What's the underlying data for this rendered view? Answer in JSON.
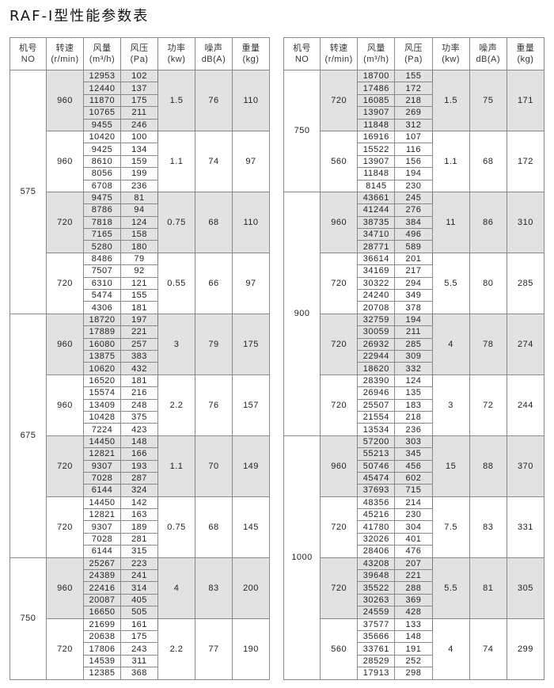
{
  "title": "RAF-Ⅰ型性能参数表",
  "headers": [
    {
      "line1": "机号",
      "line2": "NO"
    },
    {
      "line1": "转速",
      "line2": "(r/min)"
    },
    {
      "line1": "风量",
      "line2": "(m³/h)"
    },
    {
      "line1": "风压",
      "line2": "(Pa)"
    },
    {
      "line1": "功率",
      "line2": "(kw)"
    },
    {
      "line1": "噪声",
      "line2": "dB(A)"
    },
    {
      "line1": "重量",
      "line2": "(kg)"
    }
  ],
  "tables": [
    {
      "models": [
        {
          "no": "575",
          "groups": [
            {
              "speed": "960",
              "flow": [
                "12953",
                "12440",
                "11870",
                "10765",
                "9455"
              ],
              "pressure": [
                "102",
                "137",
                "175",
                "211",
                "246"
              ],
              "power": "1.5",
              "noise": "76",
              "weight": "110"
            },
            {
              "speed": "960",
              "flow": [
                "10420",
                "9425",
                "8610",
                "8056",
                "6708"
              ],
              "pressure": [
                "100",
                "134",
                "159",
                "199",
                "236"
              ],
              "power": "1.1",
              "noise": "74",
              "weight": "97"
            },
            {
              "speed": "720",
              "flow": [
                "9475",
                "8786",
                "7818",
                "7165",
                "5280"
              ],
              "pressure": [
                "81",
                "94",
                "124",
                "158",
                "180"
              ],
              "power": "0.75",
              "noise": "68",
              "weight": "110"
            },
            {
              "speed": "720",
              "flow": [
                "8486",
                "7507",
                "6310",
                "5474",
                "4306"
              ],
              "pressure": [
                "79",
                "92",
                "121",
                "155",
                "181"
              ],
              "power": "0.55",
              "noise": "66",
              "weight": "97"
            }
          ]
        },
        {
          "no": "675",
          "groups": [
            {
              "speed": "960",
              "flow": [
                "18720",
                "17889",
                "16080",
                "13875",
                "10620"
              ],
              "pressure": [
                "197",
                "221",
                "257",
                "383",
                "432"
              ],
              "power": "3",
              "noise": "79",
              "weight": "175"
            },
            {
              "speed": "960",
              "flow": [
                "16520",
                "15574",
                "13409",
                "10428",
                "7224"
              ],
              "pressure": [
                "181",
                "216",
                "248",
                "375",
                "423"
              ],
              "power": "2.2",
              "noise": "76",
              "weight": "157"
            },
            {
              "speed": "720",
              "flow": [
                "14450",
                "12821",
                "9307",
                "7028",
                "6144"
              ],
              "pressure": [
                "148",
                "166",
                "193",
                "287",
                "324"
              ],
              "power": "1.1",
              "noise": "70",
              "weight": "149"
            },
            {
              "speed": "720",
              "flow": [
                "14450",
                "12821",
                "9307",
                "7028",
                "6144"
              ],
              "pressure": [
                "142",
                "163",
                "189",
                "281",
                "315"
              ],
              "power": "0.75",
              "noise": "68",
              "weight": "145"
            }
          ]
        },
        {
          "no": "750",
          "groups": [
            {
              "speed": "960",
              "flow": [
                "25267",
                "24389",
                "22416",
                "20087",
                "16650"
              ],
              "pressure": [
                "223",
                "241",
                "314",
                "405",
                "505"
              ],
              "power": "4",
              "noise": "83",
              "weight": "200"
            },
            {
              "speed": "720",
              "flow": [
                "21699",
                "20638",
                "17806",
                "14539",
                "12385"
              ],
              "pressure": [
                "161",
                "175",
                "243",
                "311",
                "368"
              ],
              "power": "2.2",
              "noise": "77",
              "weight": "190"
            }
          ]
        }
      ]
    },
    {
      "models": [
        {
          "no": "750",
          "groups": [
            {
              "speed": "720",
              "flow": [
                "18700",
                "17486",
                "16085",
                "13907",
                "11848"
              ],
              "pressure": [
                "155",
                "172",
                "218",
                "269",
                "312"
              ],
              "power": "1.5",
              "noise": "75",
              "weight": "171"
            },
            {
              "speed": "560",
              "flow": [
                "16916",
                "15522",
                "13907",
                "11848",
                "8145"
              ],
              "pressure": [
                "107",
                "116",
                "156",
                "194",
                "230"
              ],
              "power": "1.1",
              "noise": "68",
              "weight": "172"
            }
          ]
        },
        {
          "no": "900",
          "groups": [
            {
              "speed": "960",
              "flow": [
                "43661",
                "41244",
                "38735",
                "34710",
                "28771"
              ],
              "pressure": [
                "245",
                "276",
                "384",
                "496",
                "589"
              ],
              "power": "11",
              "noise": "86",
              "weight": "310"
            },
            {
              "speed": "720",
              "flow": [
                "36614",
                "34169",
                "30322",
                "24240",
                "20708"
              ],
              "pressure": [
                "201",
                "217",
                "294",
                "349",
                "378"
              ],
              "power": "5.5",
              "noise": "80",
              "weight": "285"
            },
            {
              "speed": "720",
              "flow": [
                "32759",
                "30059",
                "26932",
                "22944",
                "18620"
              ],
              "pressure": [
                "194",
                "211",
                "285",
                "309",
                "332"
              ],
              "power": "4",
              "noise": "78",
              "weight": "274"
            },
            {
              "speed": "720",
              "flow": [
                "28390",
                "26946",
                "25507",
                "21554",
                "13534"
              ],
              "pressure": [
                "124",
                "135",
                "183",
                "218",
                "236"
              ],
              "power": "3",
              "noise": "72",
              "weight": "244"
            }
          ]
        },
        {
          "no": "1000",
          "groups": [
            {
              "speed": "960",
              "flow": [
                "57200",
                "55213",
                "50746",
                "45474",
                "37693"
              ],
              "pressure": [
                "303",
                "345",
                "456",
                "602",
                "715"
              ],
              "power": "15",
              "noise": "88",
              "weight": "370"
            },
            {
              "speed": "720",
              "flow": [
                "48356",
                "45216",
                "41780",
                "32026",
                "28406"
              ],
              "pressure": [
                "214",
                "230",
                "304",
                "401",
                "476"
              ],
              "power": "7.5",
              "noise": "83",
              "weight": "331"
            },
            {
              "speed": "720",
              "flow": [
                "43208",
                "39648",
                "35522",
                "30263",
                "24559"
              ],
              "pressure": [
                "207",
                "221",
                "288",
                "369",
                "428"
              ],
              "power": "5.5",
              "noise": "81",
              "weight": "305"
            },
            {
              "speed": "560",
              "flow": [
                "37577",
                "35666",
                "33761",
                "28529",
                "17913"
              ],
              "pressure": [
                "133",
                "148",
                "191",
                "252",
                "298"
              ],
              "power": "4",
              "noise": "74",
              "weight": "299"
            }
          ]
        }
      ]
    }
  ],
  "colors": {
    "shade": "#e2e2e2",
    "border": "#888888"
  }
}
